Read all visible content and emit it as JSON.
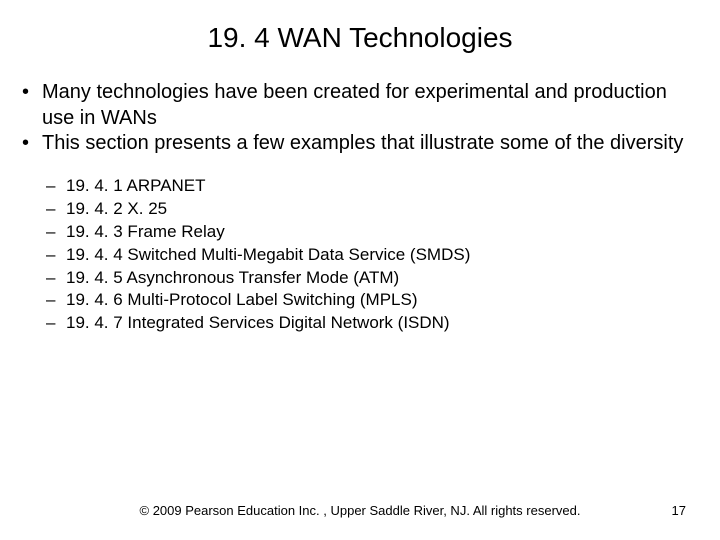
{
  "title": "19. 4  WAN Technologies",
  "bullets": [
    "Many technologies have been created for experimental and production use in WANs",
    "This section presents a few examples that illustrate some of the diversity"
  ],
  "sub_items": [
    "19. 4. 1  ARPANET",
    "19. 4. 2  X. 25",
    "19. 4. 3  Frame Relay",
    "19. 4. 4  Switched Multi-Megabit Data Service (SMDS)",
    "19. 4. 5  Asynchronous Transfer Mode (ATM)",
    "19. 4. 6  Multi-Protocol Label Switching (MPLS)",
    "19. 4. 7  Integrated Services Digital Network (ISDN)"
  ],
  "copyright": "© 2009 Pearson Education Inc. , Upper Saddle River, NJ. All rights reserved.",
  "page_number": "17",
  "colors": {
    "background": "#ffffff",
    "text": "#000000"
  },
  "typography": {
    "title_fontsize": 28,
    "bullet_fontsize": 20,
    "sub_fontsize": 17,
    "footer_fontsize": 13,
    "font_family": "Arial"
  }
}
